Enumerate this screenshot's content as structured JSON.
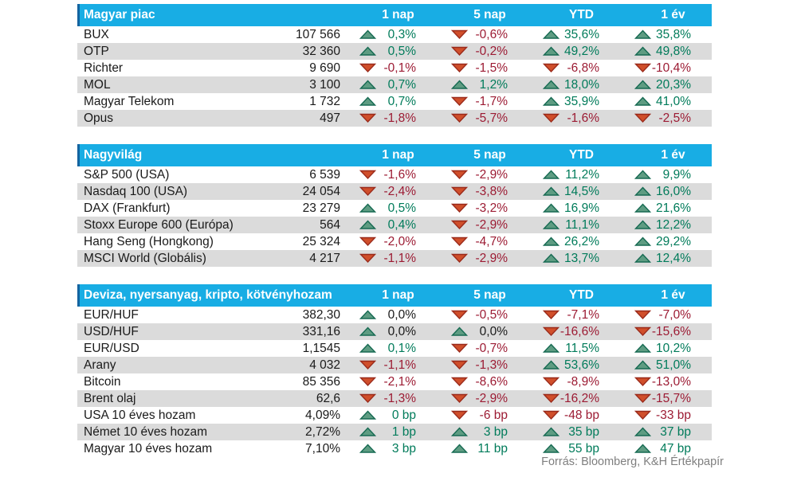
{
  "colors": {
    "header_bg": "#18ADE4",
    "header_accent": "#1464A0",
    "stripe": "#DBDBDB",
    "up_fill": "#5E9C82",
    "up_border": "#166A52",
    "down_fill": "#D04F2B",
    "down_border": "#9A2A1B",
    "pos_text": "#007B5A",
    "neg_text": "#9C1B33",
    "neutral_text": "#1A1A1A",
    "muted_text": "#7F7F7F"
  },
  "footer": {
    "source": "Forrás: Bloomberg, K&H Értékpapír"
  },
  "chart_data": [
    {
      "type": "table",
      "title": "Magyar piac",
      "columns": [
        "1 nap",
        "5 nap",
        "YTD",
        "1 év"
      ],
      "rows": [
        {
          "name": "BUX",
          "value": "107 566",
          "changes": [
            {
              "dir": "up",
              "text": "0,3%",
              "tone": "pos"
            },
            {
              "dir": "down",
              "text": "-0,6%",
              "tone": "neg"
            },
            {
              "dir": "up",
              "text": "35,6%",
              "tone": "pos"
            },
            {
              "dir": "up",
              "text": "35,8%",
              "tone": "pos"
            }
          ]
        },
        {
          "name": "OTP",
          "value": "32 360",
          "changes": [
            {
              "dir": "up",
              "text": "0,5%",
              "tone": "pos"
            },
            {
              "dir": "down",
              "text": "-0,2%",
              "tone": "neg"
            },
            {
              "dir": "up",
              "text": "49,2%",
              "tone": "pos"
            },
            {
              "dir": "up",
              "text": "49,8%",
              "tone": "pos"
            }
          ]
        },
        {
          "name": "Richter",
          "value": "9 690",
          "changes": [
            {
              "dir": "down",
              "text": "-0,1%",
              "tone": "neg"
            },
            {
              "dir": "down",
              "text": "-1,5%",
              "tone": "neg"
            },
            {
              "dir": "down",
              "text": "-6,8%",
              "tone": "neg"
            },
            {
              "dir": "down",
              "text": "-10,4%",
              "tone": "neg"
            }
          ]
        },
        {
          "name": "MOL",
          "value": "3 100",
          "changes": [
            {
              "dir": "up",
              "text": "0,7%",
              "tone": "pos"
            },
            {
              "dir": "up",
              "text": "1,2%",
              "tone": "pos"
            },
            {
              "dir": "up",
              "text": "18,0%",
              "tone": "pos"
            },
            {
              "dir": "up",
              "text": "20,3%",
              "tone": "pos"
            }
          ]
        },
        {
          "name": "Magyar Telekom",
          "value": "1 732",
          "changes": [
            {
              "dir": "up",
              "text": "0,7%",
              "tone": "pos"
            },
            {
              "dir": "down",
              "text": "-1,7%",
              "tone": "neg"
            },
            {
              "dir": "up",
              "text": "35,9%",
              "tone": "pos"
            },
            {
              "dir": "up",
              "text": "41,0%",
              "tone": "pos"
            }
          ]
        },
        {
          "name": "Opus",
          "value": "497",
          "changes": [
            {
              "dir": "down",
              "text": "-1,8%",
              "tone": "neg"
            },
            {
              "dir": "down",
              "text": "-5,7%",
              "tone": "neg"
            },
            {
              "dir": "down",
              "text": "-1,6%",
              "tone": "neg"
            },
            {
              "dir": "down",
              "text": "-2,5%",
              "tone": "neg"
            }
          ]
        }
      ]
    },
    {
      "type": "table",
      "title": "Nagyvilág",
      "columns": [
        "1 nap",
        "5 nap",
        "YTD",
        "1 év"
      ],
      "rows": [
        {
          "name": "S&P 500 (USA)",
          "value": "6 539",
          "changes": [
            {
              "dir": "down",
              "text": "-1,6%",
              "tone": "neg"
            },
            {
              "dir": "down",
              "text": "-2,9%",
              "tone": "neg"
            },
            {
              "dir": "up",
              "text": "11,2%",
              "tone": "pos"
            },
            {
              "dir": "up",
              "text": "9,9%",
              "tone": "pos"
            }
          ]
        },
        {
          "name": "Nasdaq 100 (USA)",
          "value": "24 054",
          "changes": [
            {
              "dir": "down",
              "text": "-2,4%",
              "tone": "neg"
            },
            {
              "dir": "down",
              "text": "-3,8%",
              "tone": "neg"
            },
            {
              "dir": "up",
              "text": "14,5%",
              "tone": "pos"
            },
            {
              "dir": "up",
              "text": "16,0%",
              "tone": "pos"
            }
          ]
        },
        {
          "name": "DAX (Frankfurt)",
          "value": "23 279",
          "changes": [
            {
              "dir": "up",
              "text": "0,5%",
              "tone": "pos"
            },
            {
              "dir": "down",
              "text": "-3,2%",
              "tone": "neg"
            },
            {
              "dir": "up",
              "text": "16,9%",
              "tone": "pos"
            },
            {
              "dir": "up",
              "text": "21,6%",
              "tone": "pos"
            }
          ]
        },
        {
          "name": "Stoxx Europe 600 (Európa)",
          "value": "564",
          "changes": [
            {
              "dir": "up",
              "text": "0,4%",
              "tone": "pos"
            },
            {
              "dir": "down",
              "text": "-2,9%",
              "tone": "neg"
            },
            {
              "dir": "up",
              "text": "11,1%",
              "tone": "pos"
            },
            {
              "dir": "up",
              "text": "12,2%",
              "tone": "pos"
            }
          ]
        },
        {
          "name": "Hang Seng (Hongkong)",
          "value": "25 324",
          "changes": [
            {
              "dir": "down",
              "text": "-2,0%",
              "tone": "neg"
            },
            {
              "dir": "down",
              "text": "-4,7%",
              "tone": "neg"
            },
            {
              "dir": "up",
              "text": "26,2%",
              "tone": "pos"
            },
            {
              "dir": "up",
              "text": "29,2%",
              "tone": "pos"
            }
          ]
        },
        {
          "name": "MSCI World (Globális)",
          "value": "4 217",
          "changes": [
            {
              "dir": "down",
              "text": "-1,1%",
              "tone": "neg"
            },
            {
              "dir": "down",
              "text": "-2,9%",
              "tone": "neg"
            },
            {
              "dir": "up",
              "text": "13,7%",
              "tone": "pos"
            },
            {
              "dir": "up",
              "text": "12,4%",
              "tone": "pos"
            }
          ]
        }
      ]
    },
    {
      "type": "table",
      "title": "Deviza, nyersanyag, kripto, kötvényhozam",
      "columns": [
        "1 nap",
        "5 nap",
        "YTD",
        "1 év"
      ],
      "rows": [
        {
          "name": "EUR/HUF",
          "value": "382,30",
          "changes": [
            {
              "dir": "up",
              "text": "0,0%",
              "tone": "neutral"
            },
            {
              "dir": "down",
              "text": "-0,5%",
              "tone": "neg"
            },
            {
              "dir": "down",
              "text": "-7,1%",
              "tone": "neg"
            },
            {
              "dir": "down",
              "text": "-7,0%",
              "tone": "neg"
            }
          ]
        },
        {
          "name": "USD/HUF",
          "value": "331,16",
          "changes": [
            {
              "dir": "up",
              "text": "0,0%",
              "tone": "neutral"
            },
            {
              "dir": "up",
              "text": "0,0%",
              "tone": "neutral"
            },
            {
              "dir": "down",
              "text": "-16,6%",
              "tone": "neg"
            },
            {
              "dir": "down",
              "text": "-15,6%",
              "tone": "neg"
            }
          ]
        },
        {
          "name": "EUR/USD",
          "value": "1,1545",
          "changes": [
            {
              "dir": "up",
              "text": "0,1%",
              "tone": "pos"
            },
            {
              "dir": "down",
              "text": "-0,7%",
              "tone": "neg"
            },
            {
              "dir": "up",
              "text": "11,5%",
              "tone": "pos"
            },
            {
              "dir": "up",
              "text": "10,2%",
              "tone": "pos"
            }
          ]
        },
        {
          "name": "Arany",
          "value": "4 032",
          "changes": [
            {
              "dir": "down",
              "text": "-1,1%",
              "tone": "neg"
            },
            {
              "dir": "down",
              "text": "-1,3%",
              "tone": "neg"
            },
            {
              "dir": "up",
              "text": "53,6%",
              "tone": "pos"
            },
            {
              "dir": "up",
              "text": "51,0%",
              "tone": "pos"
            }
          ]
        },
        {
          "name": "Bitcoin",
          "value": "85 356",
          "changes": [
            {
              "dir": "down",
              "text": "-2,1%",
              "tone": "neg"
            },
            {
              "dir": "down",
              "text": "-8,6%",
              "tone": "neg"
            },
            {
              "dir": "down",
              "text": "-8,9%",
              "tone": "neg"
            },
            {
              "dir": "down",
              "text": "-13,0%",
              "tone": "neg"
            }
          ]
        },
        {
          "name": "Brent olaj",
          "value": "62,6",
          "changes": [
            {
              "dir": "down",
              "text": "-1,3%",
              "tone": "neg"
            },
            {
              "dir": "down",
              "text": "-2,9%",
              "tone": "neg"
            },
            {
              "dir": "down",
              "text": "-16,2%",
              "tone": "neg"
            },
            {
              "dir": "down",
              "text": "-15,7%",
              "tone": "neg"
            }
          ]
        },
        {
          "name": "USA 10 éves hozam",
          "value": "4,09%",
          "changes": [
            {
              "dir": "up",
              "text": "0 bp",
              "tone": "pos"
            },
            {
              "dir": "down",
              "text": "-6 bp",
              "tone": "neg"
            },
            {
              "dir": "down",
              "text": "-48 bp",
              "tone": "neg"
            },
            {
              "dir": "down",
              "text": "-33 bp",
              "tone": "neg"
            }
          ]
        },
        {
          "name": "Német 10 éves hozam",
          "value": "2,72%",
          "changes": [
            {
              "dir": "up",
              "text": "1 bp",
              "tone": "pos"
            },
            {
              "dir": "up",
              "text": "3 bp",
              "tone": "pos"
            },
            {
              "dir": "up",
              "text": "35 bp",
              "tone": "pos"
            },
            {
              "dir": "up",
              "text": "37 bp",
              "tone": "pos"
            }
          ]
        },
        {
          "name": "Magyar 10 éves hozam",
          "value": "7,10%",
          "changes": [
            {
              "dir": "up",
              "text": "3 bp",
              "tone": "pos"
            },
            {
              "dir": "up",
              "text": "11 bp",
              "tone": "pos"
            },
            {
              "dir": "up",
              "text": "55 bp",
              "tone": "pos"
            },
            {
              "dir": "up",
              "text": "47 bp",
              "tone": "pos"
            }
          ]
        }
      ]
    }
  ]
}
